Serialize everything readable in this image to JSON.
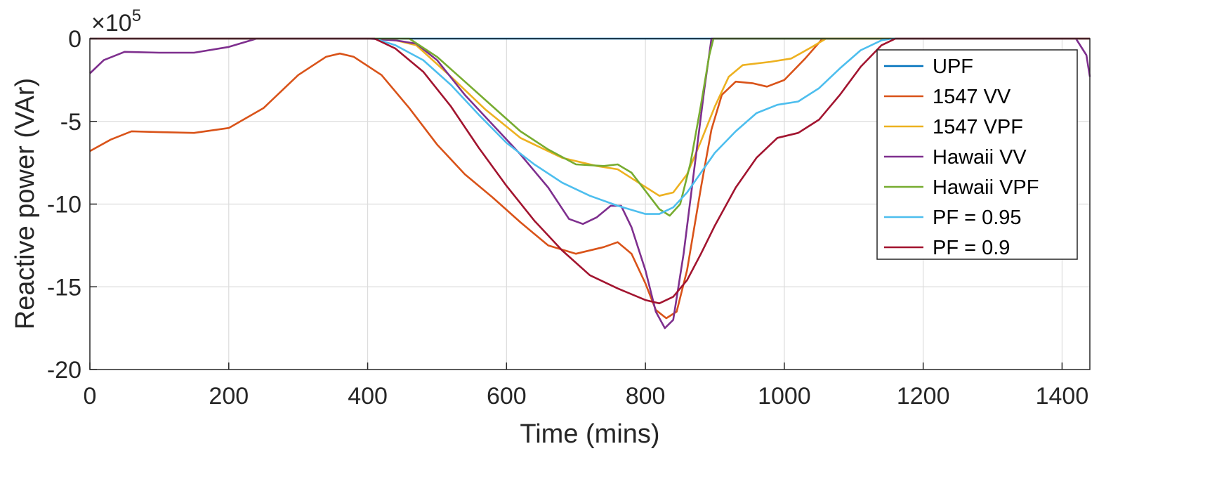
{
  "chart_data": {
    "type": "line",
    "title": "",
    "xlabel": "Time (mins)",
    "ylabel": "Reactive power (VAr)",
    "y_exponent_label": "×10",
    "y_exponent_power": "5",
    "xlim": [
      0,
      1440
    ],
    "ylim": [
      -20,
      0
    ],
    "xticks": [
      0,
      200,
      400,
      600,
      800,
      1000,
      1200,
      1400
    ],
    "xtick_labels": [
      "0",
      "200",
      "400",
      "600",
      "800",
      "1000",
      "1200",
      "1400"
    ],
    "yticks": [
      0,
      -5,
      -10,
      -15,
      -20
    ],
    "ytick_labels": [
      "0",
      "-5",
      "-10",
      "-15",
      "-20"
    ],
    "grid": true,
    "legend_position": "top-right",
    "series": [
      {
        "name": "UPF",
        "color": "#0072BD",
        "points": [
          [
            0,
            0
          ],
          [
            1440,
            0
          ]
        ]
      },
      {
        "name": "1547 VV",
        "color": "#D95319",
        "points": [
          [
            0,
            -6.8
          ],
          [
            30,
            -6.1
          ],
          [
            60,
            -5.6
          ],
          [
            100,
            -5.65
          ],
          [
            150,
            -5.7
          ],
          [
            200,
            -5.4
          ],
          [
            250,
            -4.2
          ],
          [
            300,
            -2.2
          ],
          [
            340,
            -1.1
          ],
          [
            360,
            -0.9
          ],
          [
            380,
            -1.1
          ],
          [
            420,
            -2.2
          ],
          [
            460,
            -4.2
          ],
          [
            500,
            -6.4
          ],
          [
            540,
            -8.2
          ],
          [
            580,
            -9.6
          ],
          [
            620,
            -11.1
          ],
          [
            660,
            -12.5
          ],
          [
            700,
            -13.0
          ],
          [
            740,
            -12.6
          ],
          [
            760,
            -12.3
          ],
          [
            780,
            -13.0
          ],
          [
            800,
            -14.8
          ],
          [
            815,
            -16.4
          ],
          [
            830,
            -16.9
          ],
          [
            845,
            -16.5
          ],
          [
            860,
            -14.0
          ],
          [
            880,
            -9.0
          ],
          [
            895,
            -5.5
          ],
          [
            910,
            -3.4
          ],
          [
            930,
            -2.6
          ],
          [
            955,
            -2.7
          ],
          [
            975,
            -2.9
          ],
          [
            1000,
            -2.5
          ],
          [
            1030,
            -1.2
          ],
          [
            1055,
            0
          ],
          [
            1440,
            0
          ]
        ]
      },
      {
        "name": "1547 VPF",
        "color": "#EDB120",
        "points": [
          [
            0,
            0
          ],
          [
            410,
            0
          ],
          [
            440,
            -0.1
          ],
          [
            470,
            -0.4
          ],
          [
            520,
            -2.3
          ],
          [
            570,
            -4.3
          ],
          [
            620,
            -6.0
          ],
          [
            680,
            -7.2
          ],
          [
            730,
            -7.7
          ],
          [
            760,
            -7.9
          ],
          [
            790,
            -8.7
          ],
          [
            820,
            -9.5
          ],
          [
            840,
            -9.3
          ],
          [
            860,
            -8.2
          ],
          [
            880,
            -6.2
          ],
          [
            900,
            -4.1
          ],
          [
            920,
            -2.3
          ],
          [
            940,
            -1.6
          ],
          [
            980,
            -1.4
          ],
          [
            1010,
            -1.2
          ],
          [
            1040,
            -0.5
          ],
          [
            1060,
            0
          ],
          [
            1440,
            0
          ]
        ]
      },
      {
        "name": "Hawaii VV",
        "color": "#7E2F8E",
        "points": [
          [
            0,
            -2.1
          ],
          [
            20,
            -1.3
          ],
          [
            50,
            -0.8
          ],
          [
            100,
            -0.85
          ],
          [
            150,
            -0.85
          ],
          [
            200,
            -0.5
          ],
          [
            240,
            0
          ],
          [
            400,
            0
          ],
          [
            440,
            -0.1
          ],
          [
            470,
            -0.3
          ],
          [
            500,
            -1.3
          ],
          [
            540,
            -3.4
          ],
          [
            580,
            -5.2
          ],
          [
            620,
            -7.0
          ],
          [
            660,
            -9.0
          ],
          [
            690,
            -10.9
          ],
          [
            710,
            -11.2
          ],
          [
            730,
            -10.8
          ],
          [
            750,
            -10.1
          ],
          [
            765,
            -10.1
          ],
          [
            780,
            -11.4
          ],
          [
            800,
            -14.0
          ],
          [
            815,
            -16.5
          ],
          [
            828,
            -17.5
          ],
          [
            840,
            -17.0
          ],
          [
            855,
            -13.0
          ],
          [
            870,
            -8.0
          ],
          [
            885,
            -3.0
          ],
          [
            895,
            0
          ],
          [
            1390,
            0
          ],
          [
            1420,
            0
          ],
          [
            1435,
            -1.0
          ],
          [
            1440,
            -2.3
          ]
        ]
      },
      {
        "name": "Hawaii VPF",
        "color": "#77AC30",
        "points": [
          [
            0,
            0
          ],
          [
            420,
            0
          ],
          [
            460,
            0
          ],
          [
            500,
            -1.1
          ],
          [
            540,
            -2.6
          ],
          [
            580,
            -4.1
          ],
          [
            620,
            -5.6
          ],
          [
            660,
            -6.7
          ],
          [
            700,
            -7.6
          ],
          [
            740,
            -7.7
          ],
          [
            760,
            -7.6
          ],
          [
            780,
            -8.1
          ],
          [
            800,
            -9.2
          ],
          [
            820,
            -10.3
          ],
          [
            835,
            -10.7
          ],
          [
            850,
            -10.0
          ],
          [
            865,
            -7.5
          ],
          [
            880,
            -4.0
          ],
          [
            892,
            -1.0
          ],
          [
            898,
            0
          ],
          [
            1440,
            0
          ]
        ]
      },
      {
        "name": "PF = 0.95",
        "color": "#4DBEEE",
        "points": [
          [
            0,
            0
          ],
          [
            410,
            0
          ],
          [
            440,
            -0.4
          ],
          [
            480,
            -1.3
          ],
          [
            520,
            -2.8
          ],
          [
            560,
            -4.6
          ],
          [
            600,
            -6.3
          ],
          [
            640,
            -7.6
          ],
          [
            680,
            -8.7
          ],
          [
            720,
            -9.5
          ],
          [
            760,
            -10.1
          ],
          [
            800,
            -10.6
          ],
          [
            820,
            -10.6
          ],
          [
            840,
            -10.2
          ],
          [
            860,
            -9.3
          ],
          [
            880,
            -8.1
          ],
          [
            900,
            -6.9
          ],
          [
            930,
            -5.6
          ],
          [
            960,
            -4.5
          ],
          [
            990,
            -4.0
          ],
          [
            1020,
            -3.8
          ],
          [
            1050,
            -3.0
          ],
          [
            1080,
            -1.8
          ],
          [
            1110,
            -0.7
          ],
          [
            1140,
            -0.1
          ],
          [
            1155,
            0
          ],
          [
            1440,
            0
          ]
        ]
      },
      {
        "name": "PF = 0.9",
        "color": "#A2142F",
        "points": [
          [
            0,
            0
          ],
          [
            410,
            0
          ],
          [
            440,
            -0.6
          ],
          [
            480,
            -2.0
          ],
          [
            520,
            -4.1
          ],
          [
            560,
            -6.6
          ],
          [
            600,
            -8.9
          ],
          [
            640,
            -11.0
          ],
          [
            680,
            -12.8
          ],
          [
            720,
            -14.3
          ],
          [
            760,
            -15.1
          ],
          [
            800,
            -15.8
          ],
          [
            820,
            -16.0
          ],
          [
            840,
            -15.6
          ],
          [
            860,
            -14.6
          ],
          [
            880,
            -13.0
          ],
          [
            900,
            -11.3
          ],
          [
            930,
            -9.0
          ],
          [
            960,
            -7.2
          ],
          [
            990,
            -6.0
          ],
          [
            1020,
            -5.7
          ],
          [
            1050,
            -4.9
          ],
          [
            1080,
            -3.4
          ],
          [
            1110,
            -1.7
          ],
          [
            1140,
            -0.4
          ],
          [
            1160,
            0
          ],
          [
            1440,
            0
          ]
        ]
      }
    ]
  }
}
